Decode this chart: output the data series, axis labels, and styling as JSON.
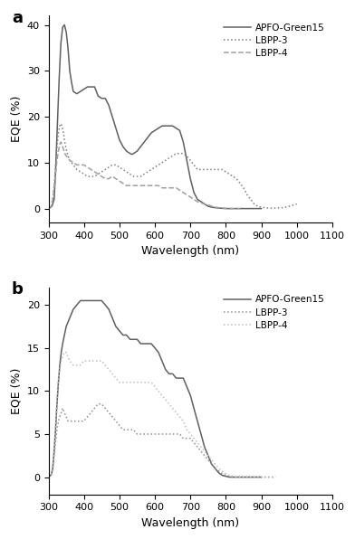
{
  "panel_a": {
    "title": "a",
    "xlabel": "Wavelength (nm)",
    "ylabel": "EQE (%)",
    "xlim": [
      300,
      1100
    ],
    "ylim": [
      -3,
      42
    ],
    "yticks": [
      0,
      10,
      20,
      30,
      40
    ],
    "xticks": [
      300,
      400,
      500,
      600,
      700,
      800,
      900,
      1000,
      1100
    ],
    "curves": {
      "APFO-Green15": {
        "style": "solid",
        "color": "#606060",
        "x": [
          300,
          310,
          316,
          320,
          325,
          330,
          335,
          340,
          345,
          350,
          355,
          360,
          365,
          370,
          380,
          390,
          400,
          410,
          420,
          430,
          440,
          450,
          460,
          470,
          480,
          490,
          500,
          510,
          520,
          530,
          535,
          540,
          550,
          560,
          570,
          580,
          590,
          600,
          610,
          620,
          630,
          640,
          650,
          660,
          670,
          680,
          690,
          700,
          710,
          720,
          730,
          740,
          750,
          760,
          770,
          780,
          790,
          800,
          810,
          820,
          830,
          840,
          850,
          860,
          870,
          880,
          890,
          900
        ],
        "y": [
          0.0,
          0.5,
          2.0,
          8.0,
          18.0,
          28.0,
          36.0,
          39.5,
          40.0,
          38.5,
          35.0,
          30.0,
          27.5,
          25.5,
          25.0,
          25.5,
          26.0,
          26.5,
          26.5,
          26.5,
          24.5,
          24.0,
          24.0,
          22.5,
          20.0,
          17.5,
          15.0,
          13.5,
          12.5,
          12.0,
          11.8,
          12.0,
          12.5,
          13.5,
          14.5,
          15.5,
          16.5,
          17.0,
          17.5,
          18.0,
          18.0,
          18.0,
          18.0,
          17.5,
          17.0,
          14.5,
          10.5,
          6.5,
          3.5,
          2.0,
          1.5,
          1.0,
          0.5,
          0.3,
          0.2,
          0.1,
          0.05,
          0.0,
          0.0,
          0.0,
          0.0,
          0.0,
          0.0,
          0.0,
          0.0,
          0.0,
          0.0,
          0.0
        ]
      },
      "LBPP-3": {
        "style": "dotted",
        "color": "#808080",
        "x": [
          300,
          308,
          312,
          316,
          320,
          324,
          328,
          332,
          335,
          338,
          342,
          346,
          350,
          355,
          360,
          370,
          380,
          390,
          400,
          410,
          420,
          430,
          440,
          450,
          460,
          470,
          480,
          490,
          500,
          510,
          520,
          530,
          540,
          550,
          560,
          570,
          580,
          590,
          600,
          610,
          620,
          630,
          640,
          650,
          660,
          670,
          680,
          690,
          700,
          710,
          720,
          730,
          740,
          750,
          760,
          770,
          780,
          790,
          800,
          810,
          820,
          830,
          840,
          850,
          860,
          870,
          880,
          890,
          900,
          910,
          920,
          940,
          960,
          980,
          1000
        ],
        "y": [
          0.0,
          0.5,
          2.0,
          5.0,
          9.5,
          13.5,
          16.5,
          18.0,
          18.5,
          18.0,
          16.5,
          14.5,
          13.0,
          11.5,
          10.5,
          9.5,
          8.5,
          8.0,
          7.5,
          7.0,
          7.0,
          7.0,
          7.5,
          8.0,
          8.5,
          9.0,
          9.5,
          9.5,
          9.0,
          8.5,
          8.0,
          7.5,
          7.0,
          7.0,
          7.0,
          7.5,
          8.0,
          8.5,
          9.0,
          9.5,
          10.0,
          10.5,
          11.0,
          11.5,
          12.0,
          12.0,
          12.0,
          11.5,
          10.5,
          9.5,
          8.5,
          8.5,
          8.5,
          8.5,
          8.5,
          8.5,
          8.5,
          8.5,
          8.0,
          7.5,
          7.0,
          6.5,
          5.5,
          4.5,
          3.0,
          2.0,
          1.0,
          0.5,
          0.3,
          0.2,
          0.1,
          0.1,
          0.2,
          0.5,
          1.0
        ]
      },
      "LBPP-4": {
        "style": "dashed",
        "color": "#a0a0a0",
        "x": [
          300,
          308,
          312,
          316,
          320,
          324,
          328,
          332,
          335,
          338,
          342,
          346,
          350,
          355,
          360,
          370,
          380,
          390,
          400,
          410,
          420,
          430,
          440,
          450,
          460,
          470,
          480,
          490,
          500,
          510,
          520,
          530,
          540,
          550,
          560,
          570,
          580,
          590,
          600,
          610,
          620,
          630,
          640,
          650,
          660,
          670,
          680,
          690,
          700,
          710,
          720,
          730,
          740,
          750,
          760,
          770,
          780,
          790,
          800,
          810,
          820,
          830,
          840
        ],
        "y": [
          0.0,
          0.5,
          2.0,
          4.5,
          7.5,
          10.5,
          12.5,
          14.0,
          14.5,
          14.0,
          13.0,
          12.0,
          11.5,
          11.0,
          10.5,
          10.0,
          9.5,
          9.5,
          9.5,
          9.0,
          8.5,
          8.0,
          7.5,
          7.0,
          6.5,
          6.5,
          7.0,
          6.5,
          6.0,
          5.5,
          5.0,
          5.0,
          5.0,
          5.0,
          5.0,
          5.0,
          5.0,
          5.0,
          5.0,
          5.0,
          4.5,
          4.5,
          4.5,
          4.5,
          4.5,
          4.0,
          3.5,
          3.0,
          2.5,
          2.0,
          1.5,
          1.2,
          1.0,
          0.8,
          0.5,
          0.3,
          0.2,
          0.1,
          0.05,
          0.0,
          0.0,
          0.0,
          0.0
        ]
      }
    }
  },
  "panel_b": {
    "title": "b",
    "xlabel": "Wavelength (nm)",
    "ylabel": "EQE (%)",
    "xlim": [
      300,
      1100
    ],
    "ylim": [
      -2,
      22
    ],
    "yticks": [
      0,
      5,
      10,
      15,
      20
    ],
    "xticks": [
      300,
      400,
      500,
      600,
      700,
      800,
      900,
      1000,
      1100
    ],
    "curves": {
      "APFO-Green15": {
        "style": "solid",
        "color": "#606060",
        "x": [
          300,
          308,
          312,
          316,
          320,
          324,
          328,
          332,
          336,
          340,
          345,
          350,
          355,
          360,
          370,
          380,
          390,
          400,
          410,
          420,
          430,
          440,
          450,
          460,
          470,
          480,
          490,
          500,
          510,
          520,
          530,
          540,
          550,
          560,
          570,
          580,
          590,
          600,
          610,
          620,
          630,
          640,
          650,
          660,
          670,
          680,
          690,
          700,
          710,
          720,
          730,
          740,
          750,
          760,
          770,
          780,
          790,
          800,
          810,
          820,
          830,
          840,
          850,
          860,
          870,
          880,
          890,
          900
        ],
        "y": [
          0.0,
          0.3,
          1.0,
          3.0,
          5.5,
          8.5,
          11.0,
          13.0,
          14.5,
          15.5,
          16.5,
          17.5,
          18.0,
          18.5,
          19.5,
          20.0,
          20.5,
          20.5,
          20.5,
          20.5,
          20.5,
          20.5,
          20.5,
          20.0,
          19.5,
          18.5,
          17.5,
          17.0,
          16.5,
          16.5,
          16.0,
          16.0,
          16.0,
          15.5,
          15.5,
          15.5,
          15.5,
          15.0,
          14.5,
          13.5,
          12.5,
          12.0,
          12.0,
          11.5,
          11.5,
          11.5,
          10.5,
          9.5,
          8.0,
          6.5,
          5.0,
          3.5,
          2.5,
          1.5,
          1.0,
          0.5,
          0.2,
          0.1,
          0.0,
          0.0,
          0.0,
          0.0,
          0.0,
          0.0,
          0.0,
          0.0,
          0.0,
          0.0
        ]
      },
      "LBPP-3": {
        "style": "dotted",
        "color": "#909090",
        "x": [
          300,
          308,
          312,
          316,
          320,
          324,
          328,
          332,
          336,
          340,
          345,
          350,
          355,
          360,
          370,
          380,
          390,
          400,
          410,
          420,
          430,
          440,
          450,
          460,
          470,
          480,
          490,
          500,
          510,
          520,
          530,
          540,
          550,
          560,
          570,
          580,
          590,
          600,
          610,
          620,
          630,
          640,
          650,
          660,
          670,
          680,
          690,
          700,
          710,
          720,
          730,
          740,
          750,
          760,
          770,
          780,
          790,
          800,
          810,
          820,
          830,
          840,
          850,
          860,
          870,
          880,
          890,
          900,
          920,
          940
        ],
        "y": [
          0.0,
          0.3,
          1.0,
          2.5,
          4.0,
          5.5,
          6.5,
          7.0,
          7.5,
          8.0,
          7.5,
          7.0,
          6.5,
          6.5,
          6.5,
          6.5,
          6.5,
          6.5,
          7.0,
          7.5,
          8.0,
          8.5,
          8.5,
          8.0,
          7.5,
          7.0,
          6.5,
          6.0,
          5.5,
          5.5,
          5.5,
          5.5,
          5.0,
          5.0,
          5.0,
          5.0,
          5.0,
          5.0,
          5.0,
          5.0,
          5.0,
          5.0,
          5.0,
          5.0,
          5.0,
          4.5,
          4.5,
          4.5,
          4.0,
          3.5,
          3.0,
          2.5,
          2.0,
          1.5,
          1.0,
          0.7,
          0.4,
          0.2,
          0.1,
          0.0,
          0.0,
          0.0,
          0.0,
          0.0,
          0.0,
          0.0,
          0.0,
          0.0,
          0.0,
          0.0
        ]
      },
      "LBPP-4": {
        "style": "dotted",
        "color": "#c0c0c0",
        "x": [
          300,
          308,
          312,
          316,
          320,
          324,
          328,
          332,
          336,
          340,
          345,
          350,
          355,
          360,
          370,
          380,
          390,
          400,
          410,
          420,
          430,
          440,
          450,
          460,
          470,
          480,
          490,
          500,
          510,
          520,
          530,
          540,
          550,
          560,
          570,
          580,
          590,
          600,
          610,
          620,
          630,
          640,
          650,
          660,
          670,
          680,
          690,
          700,
          710,
          720,
          730,
          740,
          750,
          760,
          770,
          780,
          790,
          800,
          810,
          820,
          830,
          840,
          850,
          860,
          870,
          880,
          890,
          900,
          920,
          940
        ],
        "y": [
          0.0,
          0.3,
          1.5,
          3.5,
          6.0,
          9.0,
          11.5,
          12.5,
          13.5,
          14.0,
          14.5,
          14.5,
          14.0,
          13.5,
          13.0,
          13.0,
          13.0,
          13.5,
          13.5,
          13.5,
          13.5,
          13.5,
          13.5,
          13.0,
          12.5,
          12.0,
          11.5,
          11.0,
          11.0,
          11.0,
          11.0,
          11.0,
          11.0,
          11.0,
          11.0,
          11.0,
          11.0,
          10.5,
          10.0,
          9.5,
          9.0,
          8.5,
          8.0,
          7.5,
          7.0,
          6.5,
          5.5,
          5.0,
          4.5,
          4.0,
          3.5,
          3.0,
          2.5,
          2.0,
          1.5,
          1.0,
          0.7,
          0.4,
          0.2,
          0.1,
          0.0,
          0.0,
          0.0,
          0.0,
          0.0,
          0.0,
          0.0,
          0.0,
          0.0,
          0.0
        ]
      }
    }
  }
}
